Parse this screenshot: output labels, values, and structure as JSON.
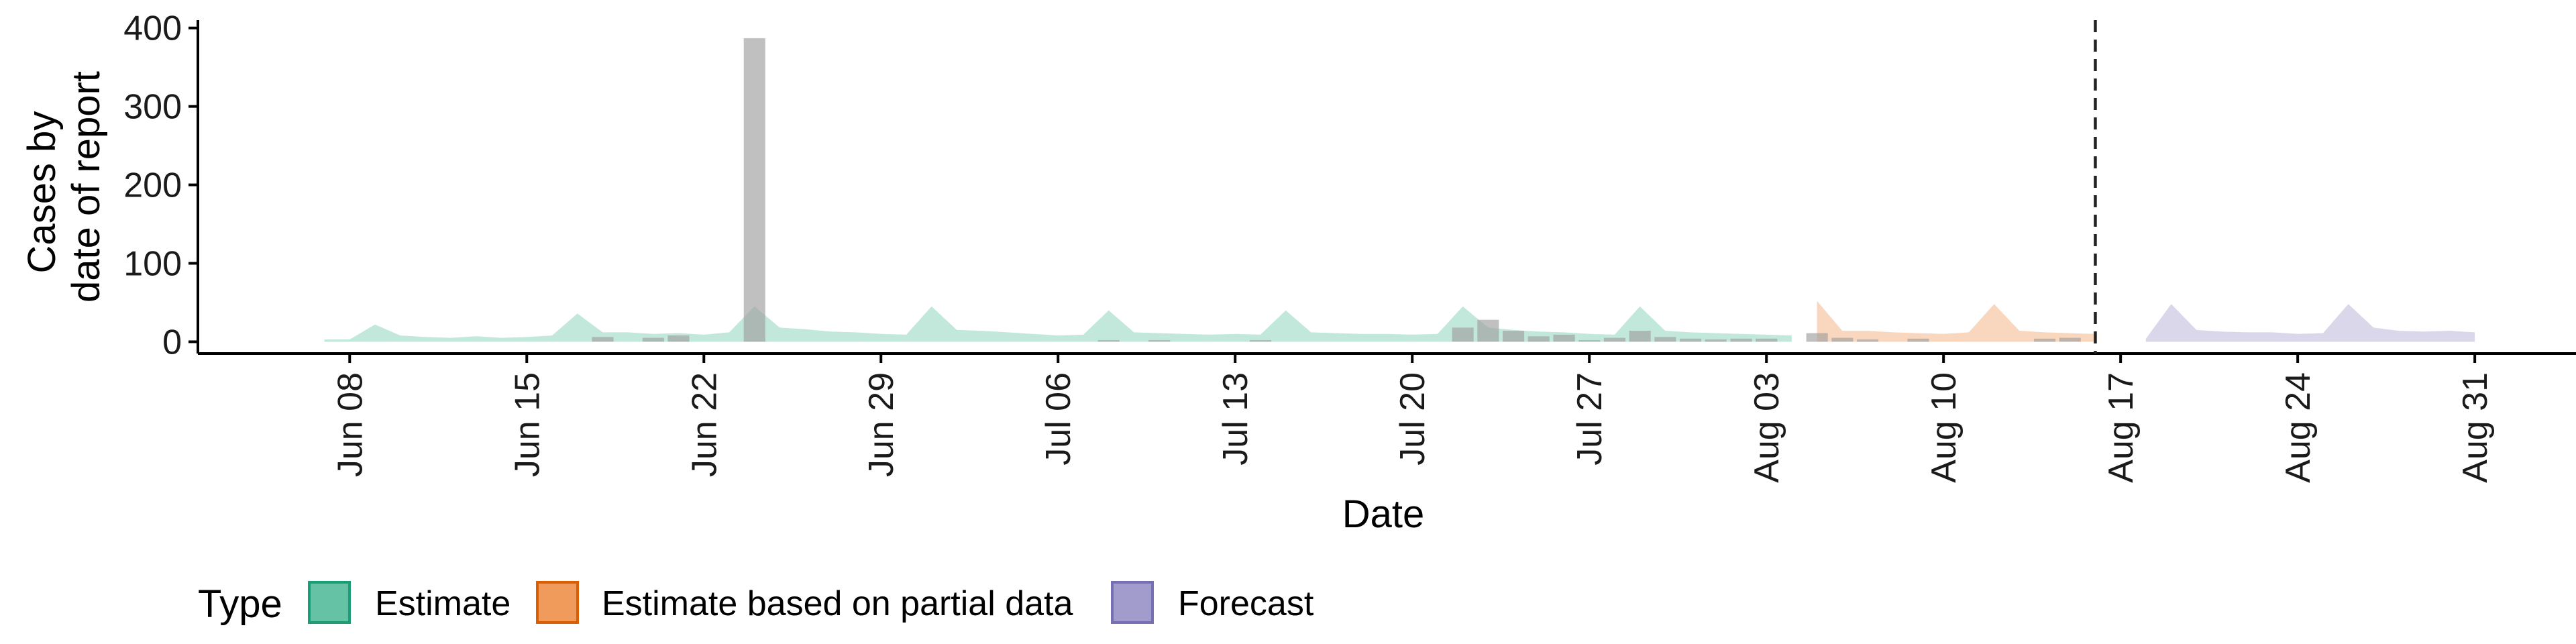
{
  "chart_data": {
    "type": "area",
    "xlabel": "Date",
    "ylabel_lines": [
      "Cases by",
      "date of report"
    ],
    "ylim": [
      -15,
      410
    ],
    "y_ticks": [
      0,
      100,
      200,
      300,
      400
    ],
    "x_range": [
      "2020-06-02",
      "2020-09-04"
    ],
    "x_ticks": [
      {
        "date": "2020-06-08",
        "label": "Jun 08"
      },
      {
        "date": "2020-06-15",
        "label": "Jun 15"
      },
      {
        "date": "2020-06-22",
        "label": "Jun 22"
      },
      {
        "date": "2020-06-29",
        "label": "Jun 29"
      },
      {
        "date": "2020-07-06",
        "label": "Jul 06"
      },
      {
        "date": "2020-07-13",
        "label": "Jul 13"
      },
      {
        "date": "2020-07-20",
        "label": "Jul 20"
      },
      {
        "date": "2020-07-27",
        "label": "Jul 27"
      },
      {
        "date": "2020-08-03",
        "label": "Aug 03"
      },
      {
        "date": "2020-08-10",
        "label": "Aug 10"
      },
      {
        "date": "2020-08-17",
        "label": "Aug 17"
      },
      {
        "date": "2020-08-24",
        "label": "Aug 24"
      },
      {
        "date": "2020-08-31",
        "label": "Aug 31"
      }
    ],
    "forecast_line_date": "2020-08-16",
    "grid": false,
    "legend": {
      "title": "Type",
      "position": "bottom",
      "entries": [
        {
          "label": "Estimate",
          "fill": "#66c2a5",
          "stroke": "#1b9e77"
        },
        {
          "label": "Estimate based on partial data",
          "fill": "#f09a5c",
          "stroke": "#d95f02"
        },
        {
          "label": "Forecast",
          "fill": "#a29ccc",
          "stroke": "#7570b3"
        }
      ]
    },
    "series": [
      {
        "name": "Estimate",
        "color": "#66c2a5",
        "opacity": 0.4,
        "x": [
          "2020-06-07",
          "2020-06-08",
          "2020-06-09",
          "2020-06-10",
          "2020-06-11",
          "2020-06-12",
          "2020-06-13",
          "2020-06-14",
          "2020-06-15",
          "2020-06-16",
          "2020-06-17",
          "2020-06-18",
          "2020-06-19",
          "2020-06-20",
          "2020-06-21",
          "2020-06-22",
          "2020-06-23",
          "2020-06-24",
          "2020-06-25",
          "2020-06-26",
          "2020-06-27",
          "2020-06-28",
          "2020-06-29",
          "2020-06-30",
          "2020-07-01",
          "2020-07-02",
          "2020-07-03",
          "2020-07-04",
          "2020-07-05",
          "2020-07-06",
          "2020-07-07",
          "2020-07-08",
          "2020-07-09",
          "2020-07-10",
          "2020-07-11",
          "2020-07-12",
          "2020-07-13",
          "2020-07-14",
          "2020-07-15",
          "2020-07-16",
          "2020-07-17",
          "2020-07-18",
          "2020-07-19",
          "2020-07-20",
          "2020-07-21",
          "2020-07-22",
          "2020-07-23",
          "2020-07-24",
          "2020-07-25",
          "2020-07-26",
          "2020-07-27",
          "2020-07-28",
          "2020-07-29",
          "2020-07-30",
          "2020-07-31",
          "2020-08-01",
          "2020-08-02",
          "2020-08-03",
          "2020-08-04"
        ],
        "upper": [
          3,
          3,
          22,
          8,
          6,
          5,
          7,
          5,
          6,
          8,
          36,
          12,
          12,
          10,
          11,
          9,
          12,
          45,
          18,
          16,
          13,
          12,
          10,
          9,
          45,
          15,
          14,
          12,
          10,
          8,
          9,
          40,
          12,
          11,
          10,
          9,
          10,
          9,
          40,
          12,
          11,
          10,
          10,
          9,
          10,
          45,
          18,
          15,
          13,
          12,
          10,
          9,
          45,
          14,
          12,
          11,
          10,
          9,
          8
        ],
        "lower": [
          0,
          0,
          0,
          0,
          0,
          0,
          0,
          0,
          0,
          0,
          0,
          0,
          0,
          0,
          0,
          0,
          0,
          0,
          0,
          0,
          0,
          0,
          0,
          0,
          0,
          0,
          0,
          0,
          0,
          0,
          0,
          0,
          0,
          0,
          0,
          0,
          0,
          0,
          0,
          0,
          0,
          0,
          0,
          0,
          0,
          0,
          0,
          0,
          0,
          0,
          0,
          0,
          0,
          0,
          0,
          0,
          0,
          0,
          0
        ]
      },
      {
        "name": "Estimate based on partial data",
        "color": "#f09a5c",
        "opacity": 0.4,
        "x": [
          "2020-08-05",
          "2020-08-06",
          "2020-08-07",
          "2020-08-08",
          "2020-08-09",
          "2020-08-10",
          "2020-08-11",
          "2020-08-12",
          "2020-08-13",
          "2020-08-14",
          "2020-08-15",
          "2020-08-16"
        ],
        "upper": [
          52,
          14,
          14,
          12,
          11,
          10,
          12,
          48,
          14,
          12,
          11,
          10
        ],
        "lower": [
          0,
          0,
          0,
          0,
          0,
          0,
          0,
          0,
          0,
          0,
          0,
          0
        ]
      },
      {
        "name": "Forecast",
        "color": "#a29ccc",
        "opacity": 0.4,
        "x": [
          "2020-08-18",
          "2020-08-19",
          "2020-08-20",
          "2020-08-21",
          "2020-08-22",
          "2020-08-23",
          "2020-08-24",
          "2020-08-25",
          "2020-08-26",
          "2020-08-27",
          "2020-08-28",
          "2020-08-29",
          "2020-08-30",
          "2020-08-31"
        ],
        "upper": [
          4,
          48,
          15,
          13,
          12,
          12,
          10,
          11,
          48,
          18,
          14,
          13,
          14,
          12
        ],
        "lower": [
          0,
          0,
          0,
          0,
          0,
          0,
          0,
          0,
          0,
          0,
          0,
          0,
          0,
          0
        ]
      }
    ],
    "reported_cases": {
      "color": "#9e9e9e",
      "opacity": 0.65,
      "dates": [
        "2020-06-18",
        "2020-06-20",
        "2020-06-21",
        "2020-06-24",
        "2020-07-08",
        "2020-07-10",
        "2020-07-14",
        "2020-07-22",
        "2020-07-23",
        "2020-07-24",
        "2020-07-25",
        "2020-07-26",
        "2020-07-27",
        "2020-07-28",
        "2020-07-29",
        "2020-07-30",
        "2020-07-31",
        "2020-08-01",
        "2020-08-02",
        "2020-08-03",
        "2020-08-05",
        "2020-08-06",
        "2020-08-07",
        "2020-08-09",
        "2020-08-14",
        "2020-08-15"
      ],
      "values": [
        6,
        5,
        8,
        387,
        2,
        2,
        2,
        18,
        28,
        14,
        7,
        9,
        2,
        5,
        14,
        6,
        4,
        3,
        4,
        4,
        11,
        5,
        3,
        4,
        4,
        5
      ]
    }
  }
}
